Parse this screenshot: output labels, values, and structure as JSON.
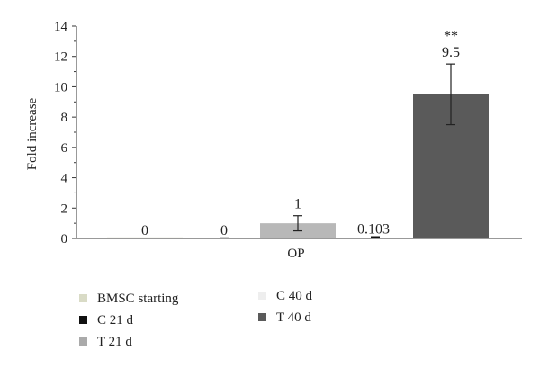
{
  "chart_data": {
    "type": "bar",
    "title": "",
    "xlabel": "",
    "ylabel": "Fold increase",
    "ylim": [
      0,
      14
    ],
    "yticks": [
      0,
      2,
      4,
      6,
      8,
      10,
      12,
      14
    ],
    "yticks_minor": [
      1,
      3,
      5,
      7,
      9,
      11,
      13
    ],
    "categories": [
      "OP"
    ],
    "grid": false,
    "legend_position": "bottom",
    "series": [
      {
        "name": "BMSC  starting",
        "values": [
          0
        ],
        "label": "0",
        "error": null,
        "significance": "",
        "color": "#d9dbc6"
      },
      {
        "name": "C 21 d",
        "values": [
          0
        ],
        "label": "0",
        "error": null,
        "significance": "",
        "color": "#111111"
      },
      {
        "name": "T 21 d",
        "values": [
          1
        ],
        "label": "1",
        "error": 0.5,
        "significance": "",
        "color": "#b8b8b8"
      },
      {
        "name": "C 40 d",
        "values": [
          0.103
        ],
        "label": "0.103",
        "error": null,
        "significance": "",
        "color": "#111111"
      },
      {
        "name": "T 40 d",
        "values": [
          9.5
        ],
        "label": "9.5",
        "error": 2.0,
        "significance": "**",
        "color": "#5a5a5a"
      }
    ],
    "legend": [
      {
        "name": "BMSC  starting",
        "color": "#d9dbc6"
      },
      {
        "name": "C 40 d",
        "color": "#eeeeee"
      },
      {
        "name": "C 21 d",
        "color": "#111111"
      },
      {
        "name": "T 40 d",
        "color": "#5a5a5a"
      },
      {
        "name": "T 21 d",
        "color": "#aaaaaa"
      }
    ]
  }
}
